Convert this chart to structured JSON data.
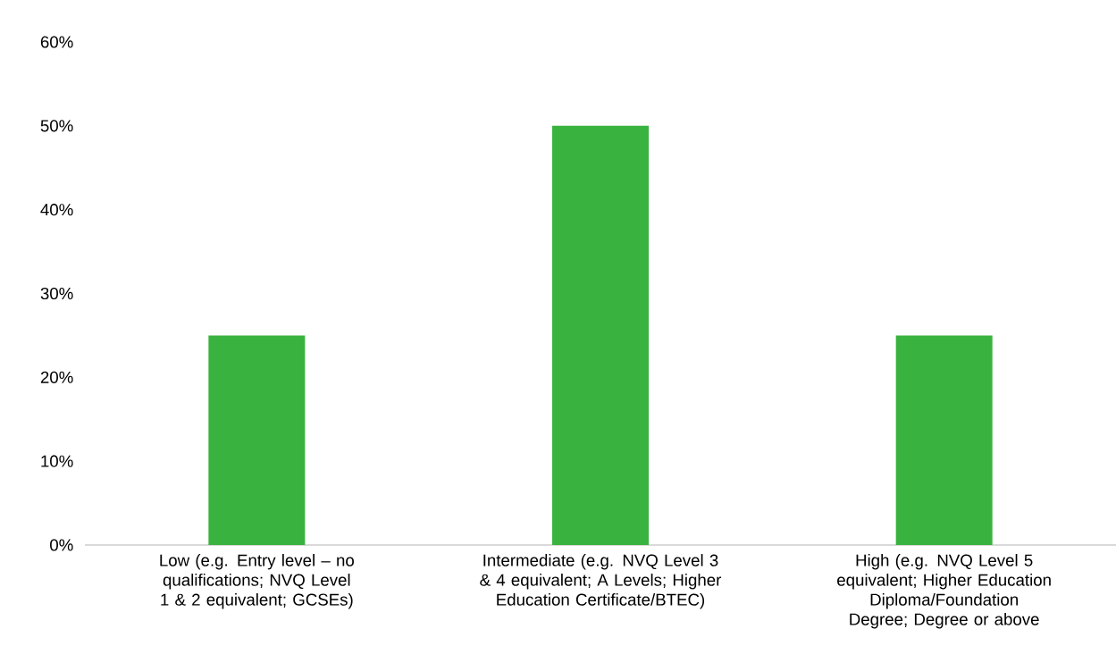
{
  "chart_data": {
    "type": "bar",
    "categories": [
      "Low (e.g. Entry level – no qualifications;  NVQ Level 1 & 2 equivalent;  GCSEs)",
      "Intermediate (e.g. NVQ Level 3 & 4 equivalent; A Levels; Higher Education Certificate/BTEC)",
      "High (e.g. NVQ Level 5 equivalent; Higher Education Diploma/Foundation Degree; Degree or above"
    ],
    "values": [
      25,
      50,
      25
    ],
    "color": "#3ab23f",
    "ylim": [
      0,
      60
    ],
    "yticks": [
      {
        "value": 0,
        "label": "0%"
      },
      {
        "value": 10,
        "label": "10%"
      },
      {
        "value": 20,
        "label": "20%"
      },
      {
        "value": 30,
        "label": "30%"
      },
      {
        "value": 40,
        "label": "40%"
      },
      {
        "value": 50,
        "label": "50%"
      },
      {
        "value": 60,
        "label": "60%"
      }
    ]
  }
}
